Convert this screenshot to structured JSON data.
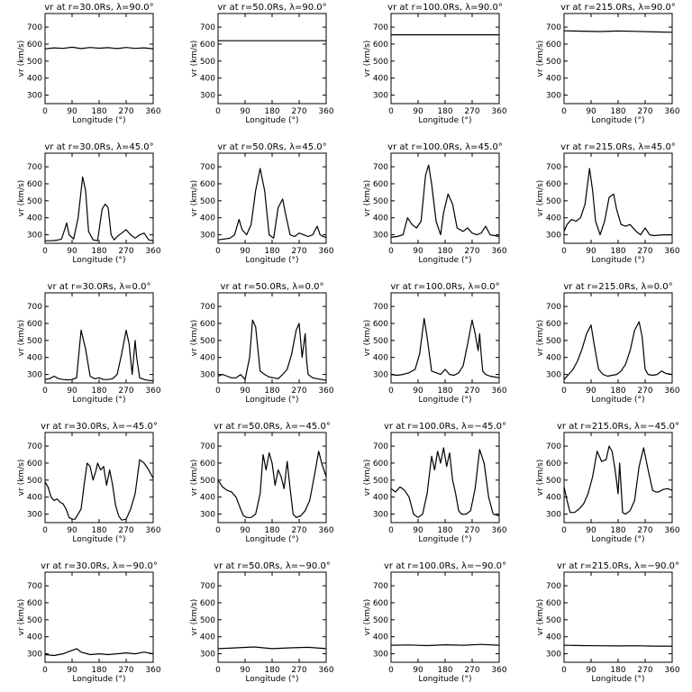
{
  "chart_data": [
    {
      "type": "line",
      "title": "vr at r=30.0Rs, λ=90.0°",
      "xlabel": "Longitude (°)",
      "ylabel": "vr (km/s)",
      "xlim": [
        0,
        360
      ],
      "ylim": [
        250,
        780
      ],
      "xticks": [
        0,
        90,
        180,
        270,
        360
      ],
      "yticks": [
        300,
        400,
        500,
        600,
        700
      ],
      "x": [
        0,
        30,
        60,
        90,
        120,
        150,
        180,
        210,
        240,
        270,
        300,
        330,
        360
      ],
      "values": [
        572,
        578,
        575,
        582,
        574,
        580,
        576,
        579,
        574,
        580,
        575,
        578,
        573
      ]
    },
    {
      "type": "line",
      "title": "vr at r=50.0Rs, λ=90.0°",
      "xlabel": "Longitude (°)",
      "ylabel": "vr (km/s)",
      "xlim": [
        0,
        360
      ],
      "ylim": [
        250,
        780
      ],
      "xticks": [
        0,
        90,
        180,
        270,
        360
      ],
      "yticks": [
        300,
        400,
        500,
        600,
        700
      ],
      "x": [
        0,
        360
      ],
      "values": [
        620,
        620
      ]
    },
    {
      "type": "line",
      "title": "vr at r=100.0Rs, λ=90.0°",
      "xlabel": "Longitude (°)",
      "ylabel": "vr (km/s)",
      "xlim": [
        0,
        360
      ],
      "ylim": [
        250,
        780
      ],
      "xticks": [
        0,
        90,
        180,
        270,
        360
      ],
      "yticks": [
        300,
        400,
        500,
        600,
        700
      ],
      "x": [
        0,
        360
      ],
      "values": [
        655,
        655
      ]
    },
    {
      "type": "line",
      "title": "vr at r=215.0Rs, λ=90.0°",
      "xlabel": "Longitude (°)",
      "ylabel": "vr (km/s)",
      "xlim": [
        0,
        360
      ],
      "ylim": [
        250,
        780
      ],
      "xticks": [
        0,
        90,
        180,
        270,
        360
      ],
      "yticks": [
        300,
        400,
        500,
        600,
        700
      ],
      "x": [
        0,
        60,
        120,
        180,
        240,
        300,
        360
      ],
      "values": [
        678,
        676,
        674,
        677,
        675,
        672,
        670
      ]
    },
    {
      "type": "line",
      "title": "vr at r=30.0Rs, λ=45.0°",
      "xlabel": "Longitude (°)",
      "ylabel": "vr (km/s)",
      "xlim": [
        0,
        360
      ],
      "ylim": [
        250,
        780
      ],
      "xticks": [
        0,
        90,
        180,
        270,
        360
      ],
      "yticks": [
        300,
        400,
        500,
        600,
        700
      ],
      "x": [
        0,
        20,
        40,
        55,
        65,
        72,
        80,
        95,
        110,
        125,
        135,
        145,
        160,
        175,
        190,
        200,
        210,
        220,
        230,
        240,
        255,
        270,
        285,
        300,
        315,
        330,
        345,
        360
      ],
      "values": [
        265,
        265,
        268,
        275,
        330,
        370,
        300,
        275,
        400,
        640,
        560,
        320,
        270,
        265,
        450,
        480,
        460,
        300,
        270,
        290,
        310,
        330,
        300,
        280,
        300,
        310,
        270,
        265
      ]
    },
    {
      "type": "line",
      "title": "vr at r=50.0Rs, λ=45.0°",
      "xlabel": "Longitude (°)",
      "ylabel": "vr (km/s)",
      "xlim": [
        0,
        360
      ],
      "ylim": [
        250,
        780
      ],
      "xticks": [
        0,
        90,
        180,
        270,
        360
      ],
      "yticks": [
        300,
        400,
        500,
        600,
        700
      ],
      "x": [
        0,
        20,
        40,
        55,
        70,
        80,
        95,
        110,
        125,
        140,
        155,
        170,
        185,
        200,
        215,
        225,
        240,
        255,
        270,
        285,
        300,
        315,
        330,
        340,
        350,
        360
      ],
      "values": [
        270,
        275,
        280,
        300,
        390,
        330,
        300,
        360,
        560,
        690,
        560,
        300,
        280,
        460,
        510,
        420,
        300,
        290,
        310,
        300,
        290,
        300,
        350,
        300,
        290,
        285
      ]
    },
    {
      "type": "line",
      "title": "vr at r=100.0Rs, λ=45.0°",
      "xlabel": "Longitude (°)",
      "ylabel": "vr (km/s)",
      "xlim": [
        0,
        360
      ],
      "ylim": [
        250,
        780
      ],
      "xticks": [
        0,
        90,
        180,
        270,
        360
      ],
      "yticks": [
        300,
        400,
        500,
        600,
        700
      ],
      "x": [
        0,
        20,
        40,
        55,
        70,
        85,
        100,
        115,
        125,
        135,
        150,
        165,
        175,
        190,
        205,
        220,
        240,
        255,
        270,
        285,
        300,
        315,
        330,
        345,
        360
      ],
      "values": [
        285,
        290,
        300,
        400,
        360,
        340,
        380,
        650,
        710,
        600,
        380,
        300,
        430,
        540,
        480,
        340,
        320,
        340,
        310,
        300,
        310,
        350,
        300,
        295,
        290
      ]
    },
    {
      "type": "line",
      "title": "vr at r=215.0Rs, λ=45.0°",
      "xlabel": "Longitude (°)",
      "ylabel": "vr (km/s)",
      "xlim": [
        0,
        360
      ],
      "ylim": [
        250,
        780
      ],
      "xticks": [
        0,
        90,
        180,
        270,
        360
      ],
      "yticks": [
        300,
        400,
        500,
        600,
        700
      ],
      "x": [
        0,
        10,
        25,
        40,
        55,
        70,
        85,
        95,
        105,
        120,
        135,
        150,
        165,
        175,
        190,
        205,
        220,
        240,
        255,
        270,
        285,
        300,
        330,
        360
      ],
      "values": [
        320,
        360,
        390,
        380,
        400,
        480,
        690,
        560,
        380,
        300,
        380,
        520,
        540,
        450,
        360,
        350,
        360,
        320,
        300,
        340,
        300,
        295,
        300,
        300
      ]
    },
    {
      "type": "line",
      "title": "vr at r=30.0Rs, λ=0.0°",
      "xlabel": "Longitude (°)",
      "ylabel": "vr (km/s)",
      "xlim": [
        0,
        360
      ],
      "ylim": [
        250,
        780
      ],
      "xticks": [
        0,
        90,
        180,
        270,
        360
      ],
      "yticks": [
        300,
        400,
        500,
        600,
        700
      ],
      "x": [
        0,
        15,
        30,
        45,
        60,
        75,
        90,
        105,
        120,
        135,
        150,
        165,
        180,
        195,
        210,
        225,
        240,
        255,
        270,
        280,
        290,
        300,
        305,
        315,
        330,
        345,
        360
      ],
      "values": [
        270,
        275,
        290,
        275,
        270,
        268,
        270,
        280,
        560,
        450,
        290,
        275,
        280,
        270,
        270,
        275,
        300,
        420,
        560,
        480,
        300,
        500,
        400,
        280,
        270,
        265,
        262
      ]
    },
    {
      "type": "line",
      "title": "vr at r=50.0Rs, λ=0.0°",
      "xlabel": "Longitude (°)",
      "ylabel": "vr (km/s)",
      "xlim": [
        0,
        360
      ],
      "ylim": [
        250,
        780
      ],
      "xticks": [
        0,
        90,
        180,
        270,
        360
      ],
      "yticks": [
        300,
        400,
        500,
        600,
        700
      ],
      "x": [
        0,
        15,
        30,
        45,
        60,
        75,
        90,
        105,
        115,
        125,
        140,
        155,
        170,
        185,
        200,
        215,
        230,
        245,
        260,
        270,
        280,
        290,
        295,
        300,
        315,
        330,
        345,
        360
      ],
      "values": [
        290,
        300,
        290,
        280,
        280,
        300,
        270,
        400,
        620,
        580,
        320,
        300,
        285,
        280,
        275,
        300,
        330,
        420,
        560,
        600,
        400,
        540,
        380,
        300,
        280,
        275,
        270,
        265
      ]
    },
    {
      "type": "line",
      "title": "vr at r=100.0Rs, λ=0.0°",
      "xlabel": "Longitude (°)",
      "ylabel": "vr (km/s)",
      "xlim": [
        0,
        360
      ],
      "ylim": [
        250,
        780
      ],
      "xticks": [
        0,
        90,
        180,
        270,
        360
      ],
      "yticks": [
        300,
        400,
        500,
        600,
        700
      ],
      "x": [
        0,
        20,
        40,
        60,
        80,
        95,
        110,
        120,
        135,
        150,
        165,
        180,
        195,
        210,
        225,
        240,
        255,
        270,
        280,
        290,
        295,
        300,
        305,
        315,
        330,
        345,
        360
      ],
      "values": [
        300,
        295,
        300,
        310,
        330,
        420,
        630,
        520,
        320,
        310,
        300,
        330,
        300,
        295,
        310,
        350,
        480,
        620,
        540,
        440,
        540,
        420,
        320,
        300,
        290,
        285,
        280
      ]
    },
    {
      "type": "line",
      "title": "vr at r=215.0Rs, λ=0.0°",
      "xlabel": "Longitude (°)",
      "ylabel": "vr (km/s)",
      "xlim": [
        0,
        360
      ],
      "ylim": [
        250,
        780
      ],
      "xticks": [
        0,
        90,
        180,
        270,
        360
      ],
      "yticks": [
        300,
        400,
        500,
        600,
        700
      ],
      "x": [
        0,
        15,
        30,
        45,
        60,
        75,
        90,
        100,
        115,
        130,
        145,
        160,
        175,
        190,
        205,
        220,
        235,
        250,
        260,
        270,
        280,
        295,
        310,
        325,
        340,
        360
      ],
      "values": [
        270,
        300,
        330,
        380,
        450,
        540,
        590,
        480,
        330,
        300,
        290,
        295,
        300,
        320,
        360,
        440,
        560,
        610,
        520,
        330,
        300,
        295,
        300,
        320,
        305,
        300
      ]
    },
    {
      "type": "line",
      "title": "vr at r=30.0Rs, λ=−45.0°",
      "xlabel": "Longitude (°)",
      "ylabel": "vr (km/s)",
      "xlim": [
        0,
        360
      ],
      "ylim": [
        250,
        780
      ],
      "xticks": [
        0,
        90,
        180,
        270,
        360
      ],
      "yticks": [
        300,
        400,
        500,
        600,
        700
      ],
      "x": [
        0,
        10,
        20,
        30,
        40,
        50,
        60,
        70,
        80,
        90,
        100,
        120,
        130,
        140,
        150,
        160,
        170,
        175,
        185,
        195,
        205,
        215,
        225,
        235,
        245,
        255,
        270,
        285,
        300,
        315,
        330,
        345,
        360
      ],
      "values": [
        490,
        460,
        400,
        380,
        390,
        370,
        360,
        330,
        280,
        270,
        270,
        330,
        470,
        600,
        580,
        500,
        560,
        600,
        560,
        580,
        470,
        560,
        470,
        350,
        290,
        265,
        270,
        330,
        420,
        620,
        600,
        560,
        510
      ]
    },
    {
      "type": "line",
      "title": "vr at r=50.0Rs, λ=−45.0°",
      "xlabel": "Longitude (°)",
      "ylabel": "vr (km/s)",
      "xlim": [
        0,
        360
      ],
      "ylim": [
        250,
        780
      ],
      "xticks": [
        0,
        90,
        180,
        270,
        360
      ],
      "yticks": [
        300,
        400,
        500,
        600,
        700
      ],
      "x": [
        0,
        15,
        30,
        45,
        60,
        75,
        85,
        95,
        110,
        125,
        140,
        150,
        160,
        170,
        180,
        190,
        200,
        210,
        220,
        230,
        240,
        250,
        260,
        275,
        290,
        305,
        320,
        335,
        345,
        360
      ],
      "values": [
        500,
        460,
        440,
        430,
        400,
        330,
        290,
        280,
        280,
        300,
        420,
        650,
        560,
        660,
        600,
        470,
        560,
        520,
        450,
        610,
        450,
        300,
        280,
        290,
        320,
        380,
        520,
        670,
        600,
        520
      ]
    },
    {
      "type": "line",
      "title": "vr at r=100.0Rs, λ=−45.0°",
      "xlabel": "Longitude (°)",
      "ylabel": "vr (km/s)",
      "xlim": [
        0,
        360
      ],
      "ylim": [
        250,
        780
      ],
      "xticks": [
        0,
        90,
        180,
        270,
        360
      ],
      "yticks": [
        300,
        400,
        500,
        600,
        700
      ],
      "x": [
        0,
        15,
        30,
        45,
        60,
        75,
        90,
        105,
        120,
        135,
        145,
        155,
        165,
        175,
        185,
        195,
        205,
        215,
        225,
        235,
        250,
        265,
        280,
        295,
        310,
        325,
        340,
        360
      ],
      "values": [
        450,
        430,
        460,
        440,
        400,
        300,
        280,
        300,
        420,
        640,
        560,
        670,
        600,
        690,
        580,
        660,
        500,
        420,
        320,
        300,
        300,
        320,
        450,
        680,
        600,
        400,
        300,
        290
      ]
    },
    {
      "type": "line",
      "title": "vr at r=215.0Rs, λ=−45.0°",
      "xlabel": "Longitude (°)",
      "ylabel": "vr (km/s)",
      "xlim": [
        0,
        360
      ],
      "ylim": [
        250,
        780
      ],
      "xticks": [
        0,
        90,
        180,
        270,
        360
      ],
      "yticks": [
        300,
        400,
        500,
        600,
        700
      ],
      "x": [
        0,
        10,
        20,
        35,
        50,
        65,
        80,
        95,
        110,
        125,
        140,
        150,
        160,
        170,
        180,
        185,
        195,
        205,
        220,
        235,
        250,
        265,
        280,
        295,
        305,
        315,
        330,
        345,
        360
      ],
      "values": [
        460,
        380,
        310,
        310,
        330,
        360,
        420,
        520,
        670,
        610,
        620,
        700,
        670,
        560,
        420,
        600,
        310,
        300,
        320,
        380,
        580,
        690,
        560,
        440,
        430,
        430,
        445,
        450,
        440
      ]
    },
    {
      "type": "line",
      "title": "vr at r=30.0Rs, λ=−90.0°",
      "xlabel": "Longitude (°)",
      "ylabel": "vr (km/s)",
      "xlim": [
        0,
        360
      ],
      "ylim": [
        250,
        780
      ],
      "xticks": [
        0,
        90,
        180,
        270,
        360
      ],
      "yticks": [
        300,
        400,
        500,
        600,
        700
      ],
      "x": [
        0,
        30,
        60,
        90,
        105,
        120,
        150,
        180,
        210,
        240,
        270,
        300,
        330,
        360
      ],
      "values": [
        295,
        290,
        300,
        320,
        330,
        310,
        295,
        300,
        295,
        300,
        305,
        300,
        310,
        300
      ]
    },
    {
      "type": "line",
      "title": "vr at r=50.0Rs, λ=−90.0°",
      "xlabel": "Longitude (°)",
      "ylabel": "vr (km/s)",
      "xlim": [
        0,
        360
      ],
      "ylim": [
        250,
        780
      ],
      "xticks": [
        0,
        90,
        180,
        270,
        360
      ],
      "yticks": [
        300,
        400,
        500,
        600,
        700
      ],
      "x": [
        0,
        60,
        120,
        180,
        240,
        300,
        360
      ],
      "values": [
        330,
        335,
        340,
        330,
        335,
        338,
        330
      ]
    },
    {
      "type": "line",
      "title": "vr at r=100.0Rs, λ=−90.0°",
      "xlabel": "Longitude (°)",
      "ylabel": "vr (km/s)",
      "xlim": [
        0,
        360
      ],
      "ylim": [
        250,
        780
      ],
      "xticks": [
        0,
        90,
        180,
        270,
        360
      ],
      "yticks": [
        300,
        400,
        500,
        600,
        700
      ],
      "x": [
        0,
        60,
        120,
        180,
        240,
        300,
        360
      ],
      "values": [
        350,
        352,
        348,
        353,
        350,
        355,
        350
      ]
    },
    {
      "type": "line",
      "title": "vr at r=215.0Rs, λ=−90.0°",
      "xlabel": "Longitude (°)",
      "ylabel": "vr (km/s)",
      "xlim": [
        0,
        360
      ],
      "ylim": [
        250,
        780
      ],
      "xticks": [
        0,
        90,
        180,
        270,
        360
      ],
      "yticks": [
        300,
        400,
        500,
        600,
        700
      ],
      "x": [
        0,
        60,
        120,
        180,
        240,
        300,
        360
      ],
      "values": [
        350,
        348,
        347,
        346,
        347,
        345,
        345
      ]
    }
  ]
}
